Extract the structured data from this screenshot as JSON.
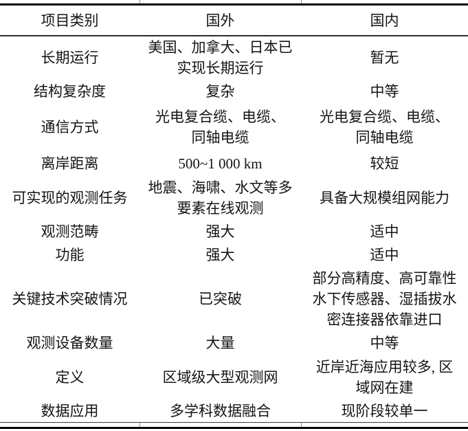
{
  "table": {
    "headers": {
      "category": "项目类别",
      "foreign": "国外",
      "domestic": "国内"
    },
    "rows": [
      {
        "category": "长期运行",
        "foreign": "美国、加拿大、日本已\n实现长期运行",
        "domestic": "暂无"
      },
      {
        "category": "结构复杂度",
        "foreign": "复杂",
        "domestic": "中等"
      },
      {
        "category": "通信方式",
        "foreign": "光电复合缆、电缆、\n同轴电缆",
        "domestic": "光电复合缆、电缆、\n同轴电缆"
      },
      {
        "category": "离岸距离",
        "foreign": "500~1 000 km",
        "domestic": "较短"
      },
      {
        "category": "可实现的观测任务",
        "foreign": "地震、海啸、水文等多\n要素在线观测",
        "domestic": "具备大规模组网能力"
      },
      {
        "category": "观测范畴",
        "foreign": "强大",
        "domestic": "适中"
      },
      {
        "category": "功能",
        "foreign": "强大",
        "domestic": "适中"
      },
      {
        "category": "关键技术突破情况",
        "foreign": "已突破",
        "domestic": "部分高精度、高可靠性\n水下传感器、湿插拔水\n密连接器依靠进口"
      },
      {
        "category": "观测设备数量",
        "foreign": "大量",
        "domestic": "中等"
      },
      {
        "category": "定义",
        "foreign": "区域级大型观测网",
        "domestic": "近岸近海应用较多, 区\n域网在建"
      },
      {
        "category": "数据应用",
        "foreign": "多学科数据融合",
        "domestic": "现阶段较单一"
      }
    ],
    "colors": {
      "rule": "#000000",
      "text": "#141414",
      "background": "#ffffff"
    }
  }
}
